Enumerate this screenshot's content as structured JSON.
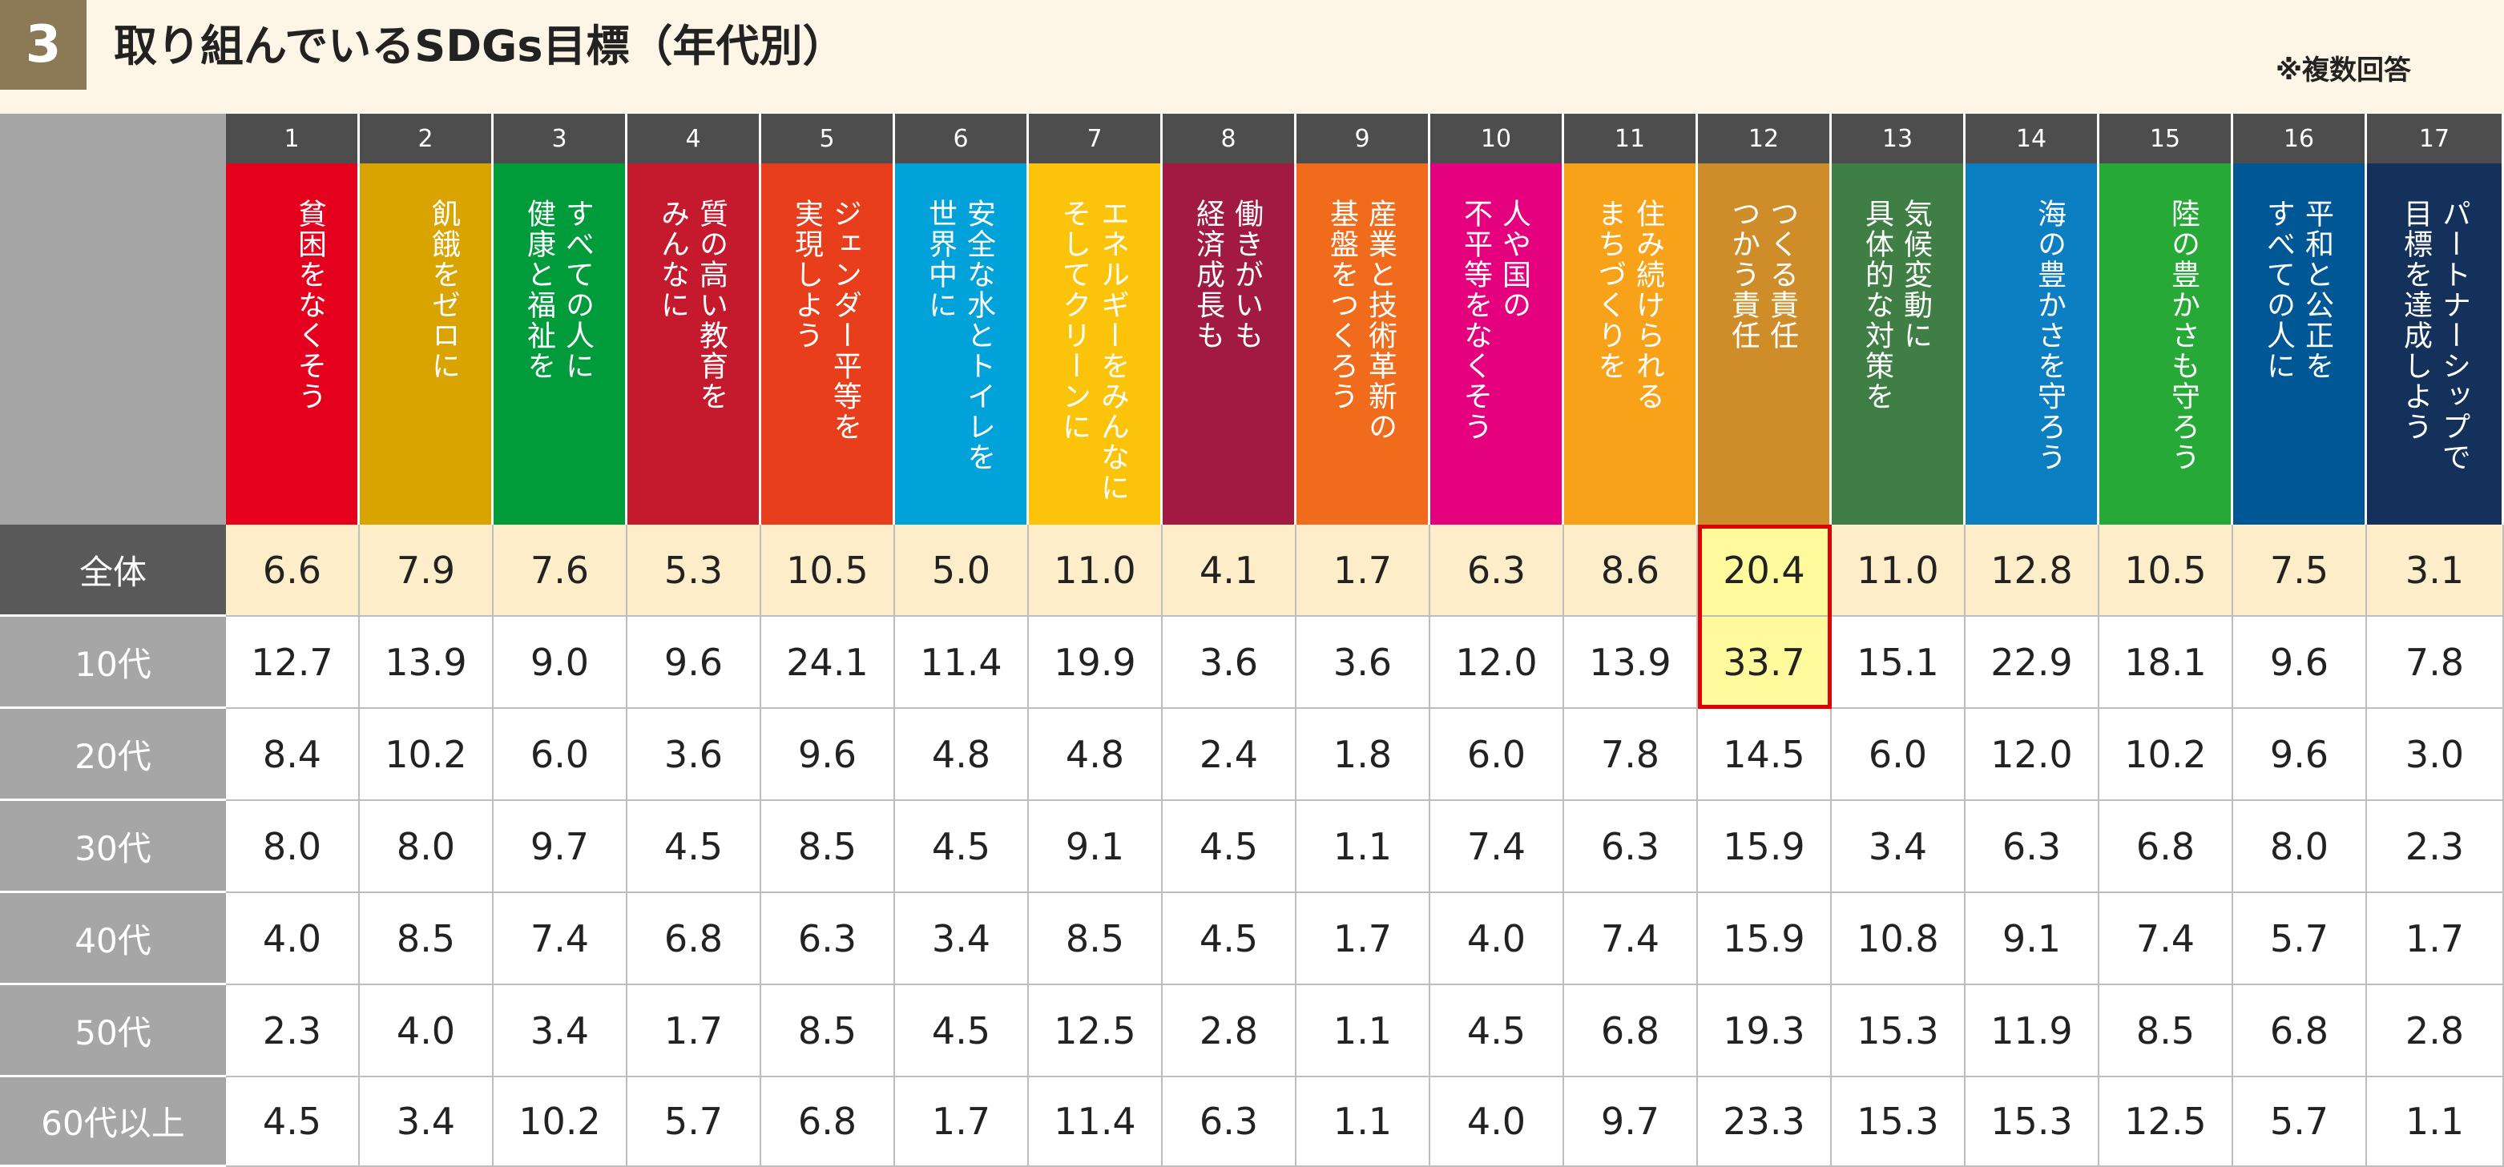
{
  "header": {
    "section_number": "3",
    "title": "取り組んでいるSDGs目標（年代別）",
    "note": "※複数回答"
  },
  "colors": {
    "goals": [
      "#e5001e",
      "#d9a300",
      "#009b3a",
      "#c5192d",
      "#e83e1b",
      "#00a2d9",
      "#fcc30b",
      "#a21942",
      "#f06b1c",
      "#e5007e",
      "#f8a21a",
      "#cf8d2a",
      "#3f7e45",
      "#0b7fc1",
      "#26a936",
      "#005795",
      "#14315b"
    ],
    "highlight_border": "#e00000",
    "overall_row_bg": "#fdedc8",
    "highlight_bg": "#fffa9c"
  },
  "chart_data": {
    "type": "table",
    "title": "取り組んでいるSDGs目標（年代別）",
    "goal_numbers": [
      "1",
      "2",
      "3",
      "4",
      "5",
      "6",
      "7",
      "8",
      "9",
      "10",
      "11",
      "12",
      "13",
      "14",
      "15",
      "16",
      "17"
    ],
    "goal_names": [
      "貧困をなくそう",
      "飢餓をゼロに",
      "すべての人に\n健康と福祉を",
      "質の高い教育を\nみんなに",
      "ジェンダー平等を\n実現しよう",
      "安全な水とトイレを\n世界中に",
      "エネルギーをみんなに\nそしてクリーンに",
      "働きがいも\n経済成長も",
      "産業と技術革新の\n基盤をつくろう",
      "人や国の\n不平等をなくそう",
      "住み続けられる\nまちづくりを",
      "つくる責任\nつかう責任",
      "気候変動に\n具体的な対策を",
      "海の豊かさを守ろう",
      "陸の豊かさも守ろう",
      "平和と公正を\nすべての人に",
      "パートナーシップで\n目標を達成しよう"
    ],
    "rows": [
      {
        "label": "全体",
        "values": [
          "6.6",
          "7.9",
          "7.6",
          "5.3",
          "10.5",
          "5.0",
          "11.0",
          "4.1",
          "1.7",
          "6.3",
          "8.6",
          "20.4",
          "11.0",
          "12.8",
          "10.5",
          "7.5",
          "3.1"
        ]
      },
      {
        "label": "10代",
        "values": [
          "12.7",
          "13.9",
          "9.0",
          "9.6",
          "24.1",
          "11.4",
          "19.9",
          "3.6",
          "3.6",
          "12.0",
          "13.9",
          "33.7",
          "15.1",
          "22.9",
          "18.1",
          "9.6",
          "7.8"
        ]
      },
      {
        "label": "20代",
        "values": [
          "8.4",
          "10.2",
          "6.0",
          "3.6",
          "9.6",
          "4.8",
          "4.8",
          "2.4",
          "1.8",
          "6.0",
          "7.8",
          "14.5",
          "6.0",
          "12.0",
          "10.2",
          "9.6",
          "3.0"
        ]
      },
      {
        "label": "30代",
        "values": [
          "8.0",
          "8.0",
          "9.7",
          "4.5",
          "8.5",
          "4.5",
          "9.1",
          "4.5",
          "1.1",
          "7.4",
          "6.3",
          "15.9",
          "3.4",
          "6.3",
          "6.8",
          "8.0",
          "2.3"
        ]
      },
      {
        "label": "40代",
        "values": [
          "4.0",
          "8.5",
          "7.4",
          "6.8",
          "6.3",
          "3.4",
          "8.5",
          "4.5",
          "1.7",
          "4.0",
          "7.4",
          "15.9",
          "10.8",
          "9.1",
          "7.4",
          "5.7",
          "1.7"
        ]
      },
      {
        "label": "50代",
        "values": [
          "2.3",
          "4.0",
          "3.4",
          "1.7",
          "8.5",
          "4.5",
          "12.5",
          "2.8",
          "1.1",
          "4.5",
          "6.8",
          "19.3",
          "15.3",
          "11.9",
          "8.5",
          "6.8",
          "2.8"
        ]
      },
      {
        "label": "60代以上",
        "values": [
          "4.5",
          "3.4",
          "10.2",
          "5.7",
          "6.8",
          "1.7",
          "11.4",
          "6.3",
          "1.1",
          "4.0",
          "9.7",
          "23.3",
          "15.3",
          "15.3",
          "12.5",
          "5.7",
          "1.1"
        ]
      }
    ],
    "highlighted_column": 12,
    "highlighted_rows": [
      "全体",
      "10代"
    ]
  }
}
